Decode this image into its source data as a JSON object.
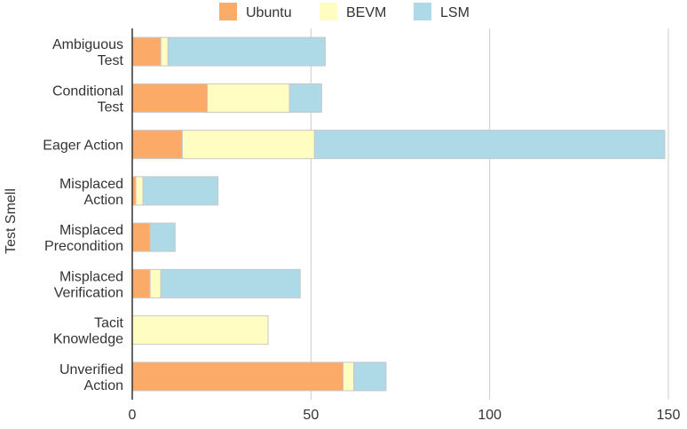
{
  "chart_data": {
    "type": "bar",
    "orientation": "horizontal",
    "stacked": true,
    "ylabel": "Test Smell",
    "xlabel": "",
    "xlim": [
      0,
      150
    ],
    "x_ticks": [
      0,
      50,
      100,
      150
    ],
    "grid": true,
    "legend_position": "top",
    "categories": [
      [
        "Ambiguous",
        "Test"
      ],
      [
        "Conditional",
        "Test"
      ],
      [
        "Eager Action"
      ],
      [
        "Misplaced",
        "Action"
      ],
      [
        "Misplaced",
        "Precondition"
      ],
      [
        "Misplaced",
        "Verification"
      ],
      [
        "Tacit",
        "Knowledge"
      ],
      [
        "Unverified",
        "Action"
      ]
    ],
    "series": [
      {
        "name": "Ubuntu",
        "color": "#fbab67",
        "values": [
          8,
          21,
          14,
          1,
          5,
          5,
          0,
          59
        ]
      },
      {
        "name": "BEVM",
        "color": "#fffdc2",
        "values": [
          2,
          23,
          37,
          2,
          0,
          3,
          38,
          3
        ]
      },
      {
        "name": "LSM",
        "color": "#aed9e6",
        "values": [
          44,
          9,
          98,
          21,
          7,
          39,
          0,
          9
        ]
      }
    ]
  }
}
